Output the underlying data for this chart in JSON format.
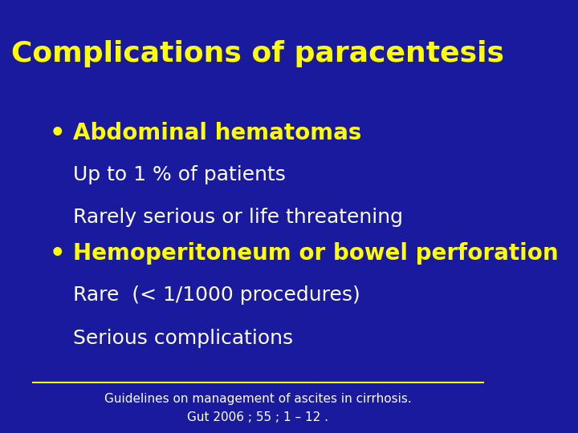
{
  "title": "Complications of paracentesis",
  "title_color": "#FFFF00",
  "title_fontsize": 26,
  "background_color": "#1A1A9F",
  "bullet1_header": "Abdominal hematomas",
  "bullet1_line1": "Up to 1 % of patients",
  "bullet1_line2": "Rarely serious or life threatening",
  "bullet2_header": "Hemoperitoneum or bowel perforation",
  "bullet2_line1": "Rare  (< 1/1000 procedures)",
  "bullet2_line2": "Serious complications",
  "bullet_color": "#FFFF00",
  "subtext_color": "#FFFFFF",
  "footer_line1": "Guidelines on management of ascites in cirrhosis.",
  "footer_line2": "Gut 2006 ; 55 ; 1 – 12 .",
  "footer_color": "#FFFFFF",
  "footer_fontsize": 11,
  "separator_color": "#FFFF00",
  "bullet_fontsize": 20,
  "subtext_fontsize": 18
}
